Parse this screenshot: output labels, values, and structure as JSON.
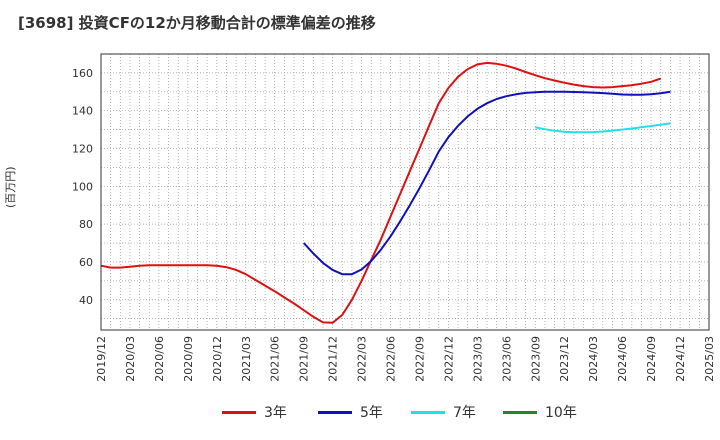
{
  "title": "[3698]  投資CFの12か月移動合計の標準偏差の推移",
  "chart_data": {
    "type": "line",
    "title": "[3698]  投資CFの12か月移動合計の標準偏差の推移",
    "xlabel": "",
    "ylabel": "(百万円)",
    "x_ticks": [
      "2019/12",
      "2020/03",
      "2020/06",
      "2020/09",
      "2020/12",
      "2021/03",
      "2021/06",
      "2021/09",
      "2021/12",
      "2022/03",
      "2022/06",
      "2022/09",
      "2022/12",
      "2023/03",
      "2023/06",
      "2023/09",
      "2023/12",
      "2024/03",
      "2024/06",
      "2024/09",
      "2024/12",
      "2025/03"
    ],
    "y_ticks": [
      40,
      60,
      80,
      100,
      120,
      140,
      160
    ],
    "ylim": [
      24,
      170
    ],
    "grid": true,
    "legend_position": "bottom",
    "series": [
      {
        "name": "3年",
        "color": "#dd1111",
        "points": [
          [
            "2019/12",
            58
          ],
          [
            "2020/01",
            57
          ],
          [
            "2020/02",
            57
          ],
          [
            "2020/03",
            57.5
          ],
          [
            "2020/04",
            58
          ],
          [
            "2020/05",
            58.2
          ],
          [
            "2020/06",
            58.3
          ],
          [
            "2020/07",
            58.3
          ],
          [
            "2020/08",
            58.3
          ],
          [
            "2020/09",
            58.3
          ],
          [
            "2020/10",
            58.3
          ],
          [
            "2020/11",
            58.3
          ],
          [
            "2020/12",
            58
          ],
          [
            "2021/01",
            57.2
          ],
          [
            "2021/02",
            55.8
          ],
          [
            "2021/03",
            53.5
          ],
          [
            "2021/04",
            50.5
          ],
          [
            "2021/05",
            47.5
          ],
          [
            "2021/06",
            44.5
          ],
          [
            "2021/07",
            41.2
          ],
          [
            "2021/08",
            38
          ],
          [
            "2021/09",
            34.5
          ],
          [
            "2021/10",
            31
          ],
          [
            "2021/11",
            28
          ],
          [
            "2021/12",
            27.8
          ],
          [
            "2022/01",
            32
          ],
          [
            "2022/02",
            40
          ],
          [
            "2022/03",
            50
          ],
          [
            "2022/04",
            61
          ],
          [
            "2022/05",
            72
          ],
          [
            "2022/06",
            84
          ],
          [
            "2022/07",
            96
          ],
          [
            "2022/08",
            108
          ],
          [
            "2022/09",
            120
          ],
          [
            "2022/10",
            132
          ],
          [
            "2022/11",
            144
          ],
          [
            "2022/12",
            152
          ],
          [
            "2023/01",
            158
          ],
          [
            "2023/02",
            162
          ],
          [
            "2023/03",
            164.5
          ],
          [
            "2023/04",
            165.3
          ],
          [
            "2023/05",
            164.8
          ],
          [
            "2023/06",
            163.8
          ],
          [
            "2023/07",
            162.3
          ],
          [
            "2023/08",
            160.5
          ],
          [
            "2023/09",
            158.8
          ],
          [
            "2023/10",
            157.2
          ],
          [
            "2023/11",
            156
          ],
          [
            "2023/12",
            154.8
          ],
          [
            "2024/01",
            153.8
          ],
          [
            "2024/02",
            153
          ],
          [
            "2024/03",
            152.5
          ],
          [
            "2024/04",
            152.3
          ],
          [
            "2024/05",
            152.5
          ],
          [
            "2024/06",
            153
          ],
          [
            "2024/07",
            153.5
          ],
          [
            "2024/08",
            154.3
          ],
          [
            "2024/09",
            155.3
          ],
          [
            "2024/10",
            157
          ]
        ]
      },
      {
        "name": "5年",
        "color": "#1111bb",
        "points": [
          [
            "2021/09",
            70
          ],
          [
            "2021/10",
            64.5
          ],
          [
            "2021/11",
            59.5
          ],
          [
            "2021/12",
            55.8
          ],
          [
            "2022/01",
            53.5
          ],
          [
            "2022/02",
            53.5
          ],
          [
            "2022/03",
            56
          ],
          [
            "2022/04",
            60.5
          ],
          [
            "2022/05",
            66.5
          ],
          [
            "2022/06",
            73.5
          ],
          [
            "2022/07",
            81.5
          ],
          [
            "2022/08",
            90
          ],
          [
            "2022/09",
            99
          ],
          [
            "2022/10",
            108.5
          ],
          [
            "2022/11",
            118.5
          ],
          [
            "2022/12",
            126
          ],
          [
            "2023/01",
            132
          ],
          [
            "2023/02",
            137
          ],
          [
            "2023/03",
            141
          ],
          [
            "2023/04",
            144
          ],
          [
            "2023/05",
            146.2
          ],
          [
            "2023/06",
            147.7
          ],
          [
            "2023/07",
            148.7
          ],
          [
            "2023/08",
            149.4
          ],
          [
            "2023/09",
            149.8
          ],
          [
            "2023/10",
            150
          ],
          [
            "2023/11",
            150
          ],
          [
            "2023/12",
            150
          ],
          [
            "2024/01",
            149.9
          ],
          [
            "2024/02",
            149.8
          ],
          [
            "2024/03",
            149.6
          ],
          [
            "2024/04",
            149.3
          ],
          [
            "2024/05",
            149
          ],
          [
            "2024/06",
            148.6
          ],
          [
            "2024/07",
            148.4
          ],
          [
            "2024/08",
            148.4
          ],
          [
            "2024/09",
            148.7
          ],
          [
            "2024/10",
            149.2
          ],
          [
            "2024/11",
            150
          ]
        ]
      },
      {
        "name": "7年",
        "color": "#22e0e8",
        "points": [
          [
            "2023/09",
            131.2
          ],
          [
            "2023/10",
            130.2
          ],
          [
            "2023/11",
            129.4
          ],
          [
            "2023/12",
            128.9
          ],
          [
            "2024/01",
            128.6
          ],
          [
            "2024/02",
            128.6
          ],
          [
            "2024/03",
            128.7
          ],
          [
            "2024/04",
            129
          ],
          [
            "2024/05",
            129.5
          ],
          [
            "2024/06",
            130
          ],
          [
            "2024/07",
            130.6
          ],
          [
            "2024/08",
            131.2
          ],
          [
            "2024/09",
            131.9
          ],
          [
            "2024/10",
            132.6
          ],
          [
            "2024/11",
            133.4
          ]
        ]
      },
      {
        "name": "10年",
        "color": "#228822",
        "points": []
      }
    ]
  }
}
